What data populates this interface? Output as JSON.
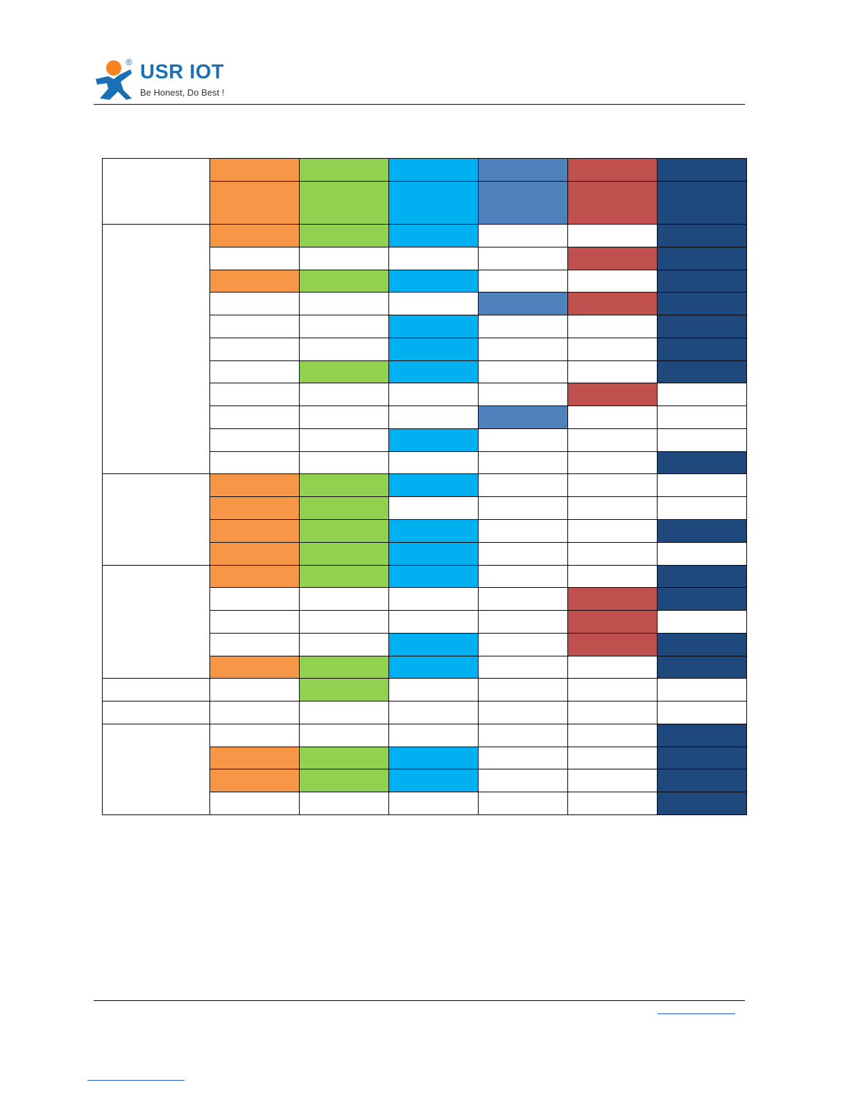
{
  "header": {
    "brand": "USR IOT",
    "registered": "®",
    "slogan": "Be Honest, Do Best !"
  }
}
